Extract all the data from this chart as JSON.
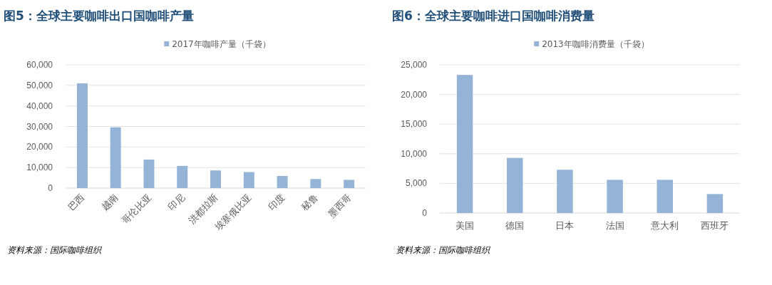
{
  "chart_data": [
    {
      "type": "bar",
      "title": "图5：全球主要咖啡出口国咖啡产量",
      "categories": [
        "巴西",
        "越南",
        "哥伦比亚",
        "印尼",
        "洪都拉斯",
        "埃塞俄比亚",
        "印度",
        "秘鲁",
        "墨西哥"
      ],
      "series": [
        {
          "name": "2017年咖啡产量（千袋）",
          "color": "#95b3d7",
          "values": [
            51000,
            29600,
            13900,
            10800,
            8600,
            7800,
            5900,
            4400,
            4000
          ]
        }
      ],
      "ylim": [
        0,
        60000
      ],
      "yticks": [
        {
          "value": 0,
          "label": "0"
        },
        {
          "value": 10000,
          "label": "10,000"
        },
        {
          "value": 20000,
          "label": "20,000"
        },
        {
          "value": 30000,
          "label": "30,000"
        },
        {
          "value": 40000,
          "label": "40,000"
        },
        {
          "value": 50000,
          "label": "50,000"
        },
        {
          "value": 60000,
          "label": "60,000"
        }
      ],
      "grid": "y",
      "legend": "top",
      "annotations": [
        "资料来源：国际咖啡组织"
      ]
    },
    {
      "type": "bar",
      "title": "图6：全球主要咖啡进口国咖啡消费量",
      "categories": [
        "美国",
        "德国",
        "日本",
        "法国",
        "意大利",
        "西班牙"
      ],
      "series": [
        {
          "name": "2013年咖啡消费量（千袋）",
          "color": "#95b3d7",
          "values": [
            23300,
            9300,
            7300,
            5600,
            5600,
            3200
          ]
        }
      ],
      "ylim": [
        0,
        25000
      ],
      "yticks": [
        {
          "value": 0,
          "label": "0"
        },
        {
          "value": 5000,
          "label": "5,000"
        },
        {
          "value": 10000,
          "label": "10,000"
        },
        {
          "value": 15000,
          "label": "15,000"
        },
        {
          "value": 20000,
          "label": "20,000"
        },
        {
          "value": 25000,
          "label": "25,000"
        }
      ],
      "grid": "y",
      "legend": "top",
      "annotations": [
        "资料来源：国际咖啡组织"
      ]
    }
  ]
}
